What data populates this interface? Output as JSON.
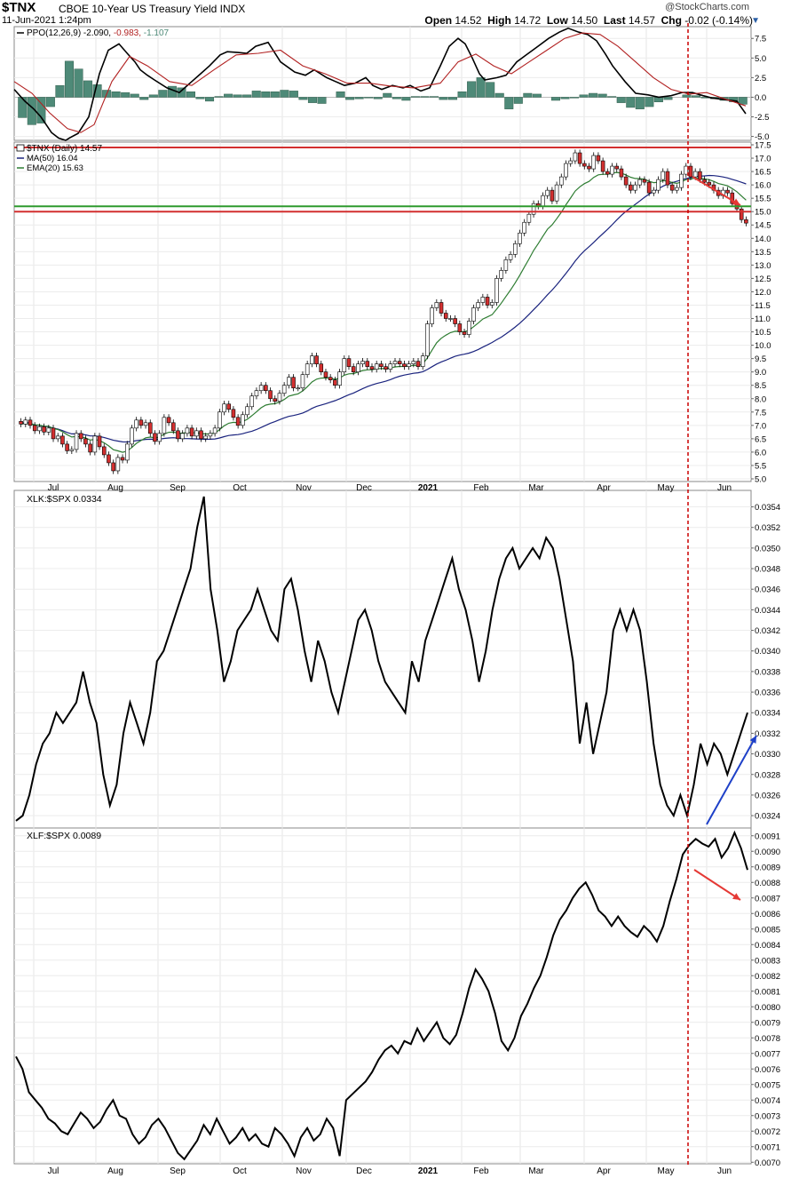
{
  "header": {
    "symbol": "$TNX",
    "description": "CBOE 10-Year US Treasury Yield INDX",
    "timestamp": "11-Jun-2021 1:24pm",
    "credit": "@StockCharts.com",
    "quote": {
      "open_label": "Open",
      "open": "14.52",
      "high_label": "High",
      "high": "14.72",
      "low_label": "Low",
      "low": "14.50",
      "last_label": "Last",
      "last": "14.57",
      "chg_label": "Chg",
      "chg": "-0.02 (-0.14%)"
    }
  },
  "colors": {
    "ppo_line": "#000000",
    "ppo_signal": "#b22222",
    "histogram": "#4e8a78",
    "ma50": "#1a237e",
    "ema20": "#2e7d32",
    "candle_up": "#ffffff",
    "candle_down": "#d32f2f",
    "resistance": "#d32f2f",
    "support": "#2e9a2e",
    "arrow_red": "#e53935",
    "arrow_blue": "#1e40c8",
    "vline": "#cc0000"
  },
  "x_axis": {
    "labels": [
      "Jul",
      "Aug",
      "Sep",
      "Oct",
      "Nov",
      "Dec",
      "2021",
      "Feb",
      "Mar",
      "Apr",
      "May",
      "Jun"
    ]
  },
  "chart_data": [
    {
      "panel": "ppo",
      "type": "line",
      "label_prefix": "PPO(12,26,9)",
      "values_text": [
        "-2.090",
        "-0.983",
        "-1.107"
      ],
      "ylim": [
        -5.5,
        9.0
      ],
      "ticks": [
        "7.5",
        "5.0",
        "2.5",
        "0.0",
        "-2.5",
        "-5.0"
      ],
      "series": [
        {
          "name": "PPO",
          "x": [
            0,
            12,
            22,
            30,
            36,
            42,
            50,
            58,
            62,
            72,
            84,
            96,
            106,
            118,
            128,
            136,
            142,
            150,
            158,
            172,
            186,
            190,
            200,
            210,
            220,
            232,
            240,
            252,
            262,
            272,
            286,
            300,
            316,
            328,
            338,
            352,
            362,
            372,
            384,
            396,
            404,
            414,
            426,
            438,
            446,
            458,
            468,
            480,
            490,
            500,
            508,
            516,
            524,
            530,
            544,
            554,
            566,
            578,
            590,
            602,
            614,
            624,
            636,
            646,
            656,
            666,
            674,
            688,
            700,
            714,
            726,
            740,
            752,
            764,
            776,
            786,
            800,
            814,
            824
          ],
          "values": [
            1.0,
            -0.5,
            -1.5,
            -2.5,
            -3.5,
            -4.5,
            -5.2,
            -5.5,
            -5.2,
            -4.6,
            -2.5,
            3.0,
            6.0,
            6.8,
            5.5,
            4.5,
            3.5,
            2.8,
            2.2,
            1.2,
            0.6,
            1.0,
            2.0,
            3.0,
            4.0,
            5.4,
            5.8,
            5.7,
            5.6,
            6.5,
            7.0,
            4.5,
            3.2,
            2.8,
            3.5,
            2.5,
            2.0,
            1.5,
            1.8,
            2.5,
            1.5,
            1.0,
            1.5,
            1.2,
            1.5,
            0.8,
            1.2,
            4.0,
            6.5,
            7.5,
            6.8,
            5.0,
            3.0,
            2.2,
            2.5,
            2.8,
            4.5,
            5.5,
            6.5,
            7.5,
            8.3,
            8.8,
            8.3,
            8.0,
            7.2,
            5.5,
            4.0,
            2.0,
            0.5,
            0.3,
            0.0,
            0.2,
            0.6,
            0.6,
            0.2,
            -0.1,
            -0.3,
            -0.5,
            -2.1
          ]
        },
        {
          "name": "Signal",
          "x": [
            0,
            20,
            40,
            60,
            75,
            90,
            110,
            130,
            150,
            175,
            200,
            225,
            250,
            275,
            300,
            325,
            350,
            375,
            400,
            425,
            450,
            480,
            500,
            520,
            540,
            560,
            580,
            600,
            620,
            640,
            660,
            680,
            700,
            720,
            740,
            760,
            780,
            800,
            824
          ],
          "values": [
            2.0,
            0.5,
            -2.0,
            -4.0,
            -4.5,
            -3.5,
            2.0,
            5.2,
            4.0,
            2.0,
            1.5,
            3.5,
            5.4,
            5.6,
            6.0,
            4.0,
            3.0,
            1.8,
            1.8,
            1.4,
            1.2,
            1.8,
            4.5,
            5.5,
            4.0,
            3.0,
            4.5,
            6.0,
            7.5,
            8.2,
            8.0,
            6.5,
            4.5,
            2.5,
            1.0,
            0.4,
            0.6,
            -0.2,
            -1.1
          ]
        }
      ],
      "histogram": [
        -2.6,
        -3.5,
        -3.3,
        -1.2,
        1.5,
        4.6,
        3.6,
        2.1,
        1.6,
        0.9,
        0.7,
        0.6,
        0.4,
        -0.3,
        0.3,
        0.9,
        1.4,
        1.2,
        0.7,
        -0.2,
        -0.5,
        0.1,
        0.4,
        0.3,
        0.3,
        0.8,
        0.7,
        0.7,
        0.9,
        0.8,
        -0.3,
        -0.7,
        -0.8,
        0.0,
        0.7,
        -0.3,
        -0.2,
        -0.1,
        -0.2,
        0.5,
        -0.2,
        -0.4,
        0.1,
        0.1,
        0.1,
        -0.3,
        -0.3,
        0.7,
        2.0,
        2.5,
        1.9,
        0.5,
        -1.5,
        -0.8,
        0.5,
        0.4,
        0.0,
        -0.4,
        -0.2,
        -0.1,
        0.3,
        0.5,
        0.4,
        0.1,
        -0.7,
        -1.3,
        -1.5,
        -1.2,
        -0.6,
        -0.3,
        0.0,
        0.3,
        0.2,
        -0.1,
        -0.2,
        -0.4,
        -0.6,
        -0.9
      ]
    },
    {
      "panel": "price",
      "type": "candlestick",
      "title": "$TNX (Daily) 14.57",
      "legend": [
        {
          "label": "MA(50)",
          "value": "16.04"
        },
        {
          "label": "EMA(20)",
          "value": "15.63"
        }
      ],
      "ylim": [
        4.9,
        17.6
      ],
      "ticks": [
        "17.5",
        "17.0",
        "16.5",
        "16.0",
        "15.5",
        "15.0",
        "14.5",
        "14.0",
        "13.5",
        "13.0",
        "12.5",
        "12.0",
        "11.5",
        "11.0",
        "10.5",
        "10.0",
        "9.5",
        "9.0",
        "8.5",
        "8.0",
        "7.5",
        "7.0",
        "6.5",
        "6.0",
        "5.5",
        "5.0"
      ],
      "horizontal_lines": [
        17.4,
        15.0,
        15.2
      ],
      "close": [
        7.05,
        7.2,
        7.0,
        6.8,
        6.95,
        6.75,
        6.9,
        6.5,
        6.6,
        6.3,
        6.05,
        6.1,
        6.7,
        6.5,
        6.3,
        6.0,
        6.6,
        6.2,
        5.9,
        5.6,
        5.3,
        5.8,
        5.7,
        6.3,
        6.9,
        7.2,
        7.0,
        7.1,
        6.7,
        6.4,
        6.7,
        7.3,
        7.1,
        6.8,
        6.5,
        6.7,
        6.9,
        6.6,
        6.8,
        6.5,
        6.6,
        6.7,
        6.9,
        7.5,
        7.8,
        7.6,
        7.3,
        7.0,
        7.4,
        7.7,
        8.1,
        8.3,
        8.5,
        8.3,
        8.0,
        7.9,
        8.2,
        8.5,
        8.8,
        8.4,
        8.4,
        8.9,
        9.3,
        9.6,
        9.3,
        9.0,
        8.8,
        8.7,
        8.5,
        9.0,
        9.5,
        9.2,
        9.0,
        9.3,
        9.4,
        9.2,
        9.1,
        9.3,
        9.2,
        9.1,
        9.3,
        9.4,
        9.3,
        9.2,
        9.3,
        9.4,
        9.2,
        9.6,
        10.8,
        11.4,
        11.6,
        11.2,
        11.0,
        11.0,
        10.8,
        10.5,
        10.4,
        10.9,
        11.4,
        11.6,
        11.8,
        11.5,
        11.6,
        12.5,
        12.8,
        13.2,
        13.4,
        13.8,
        14.2,
        14.6,
        14.9,
        15.3,
        15.2,
        15.6,
        15.8,
        15.4,
        16.0,
        16.3,
        16.8,
        16.9,
        17.2,
        16.8,
        16.7,
        16.6,
        17.1,
        16.9,
        16.5,
        16.4,
        16.7,
        16.6,
        16.3,
        16.0,
        15.8,
        16.0,
        16.2,
        16.1,
        15.7,
        15.8,
        16.2,
        16.5,
        16.0,
        15.8,
        15.9,
        16.4,
        16.7,
        16.3,
        16.5,
        16.2,
        16.1,
        16.0,
        15.8,
        15.6,
        15.8,
        15.7,
        15.3,
        15.1,
        14.7,
        14.57
      ]
    },
    {
      "panel": "xlk",
      "type": "line",
      "title": "XLK:$SPX 0.0334",
      "ylim": [
        0.03228,
        0.03556
      ],
      "ticks": [
        "0.0354",
        "0.0352",
        "0.0350",
        "0.0348",
        "0.0346",
        "0.0344",
        "0.0342",
        "0.0340",
        "0.0338",
        "0.0336",
        "0.0334",
        "0.0332",
        "0.0330",
        "0.0328",
        "0.0326",
        "0.0324"
      ],
      "values": [
        0.03235,
        0.0324,
        0.0326,
        0.0329,
        0.0331,
        0.0332,
        0.0334,
        0.0333,
        0.0334,
        0.0335,
        0.0338,
        0.0335,
        0.0333,
        0.0328,
        0.0325,
        0.0327,
        0.0332,
        0.0335,
        0.0333,
        0.0331,
        0.0334,
        0.0339,
        0.034,
        0.0342,
        0.0344,
        0.0346,
        0.0348,
        0.0352,
        0.0355,
        0.0346,
        0.0342,
        0.0337,
        0.0339,
        0.0342,
        0.0343,
        0.0344,
        0.0346,
        0.0344,
        0.0342,
        0.0341,
        0.0346,
        0.0347,
        0.0344,
        0.034,
        0.0337,
        0.0341,
        0.0339,
        0.0336,
        0.0334,
        0.0337,
        0.034,
        0.0343,
        0.0344,
        0.0342,
        0.0339,
        0.0337,
        0.0336,
        0.0335,
        0.0334,
        0.0339,
        0.0337,
        0.0341,
        0.0343,
        0.0345,
        0.0347,
        0.0349,
        0.0346,
        0.0344,
        0.0341,
        0.0337,
        0.034,
        0.0344,
        0.0347,
        0.0349,
        0.035,
        0.0348,
        0.0349,
        0.035,
        0.0349,
        0.0351,
        0.035,
        0.0347,
        0.0343,
        0.0339,
        0.0331,
        0.0335,
        0.033,
        0.0333,
        0.0336,
        0.0342,
        0.0344,
        0.0342,
        0.0344,
        0.0342,
        0.0337,
        0.0331,
        0.0327,
        0.0325,
        0.0324,
        0.0326,
        0.0324,
        0.0327,
        0.0331,
        0.0329,
        0.0331,
        0.033,
        0.0328,
        0.033,
        0.0332,
        0.0334
      ]
    },
    {
      "panel": "xlf",
      "type": "line",
      "title": "XLF:$SPX 0.0089",
      "ylim": [
        0.00699,
        0.00915
      ],
      "ticks": [
        "0.0091",
        "0.0090",
        "0.0089",
        "0.0088",
        "0.0087",
        "0.0086",
        "0.0085",
        "0.0084",
        "0.0083",
        "0.0082",
        "0.0081",
        "0.0080",
        "0.0079",
        "0.0078",
        "0.0077",
        "0.0076",
        "0.0075",
        "0.0074",
        "0.0073",
        "0.0072",
        "0.0071",
        "0.0070"
      ],
      "values": [
        0.00768,
        0.0076,
        0.00745,
        0.0074,
        0.00735,
        0.00728,
        0.00725,
        0.0072,
        0.00718,
        0.00725,
        0.00732,
        0.00728,
        0.00722,
        0.00726,
        0.00734,
        0.0074,
        0.0073,
        0.00728,
        0.00718,
        0.00712,
        0.00716,
        0.00724,
        0.00728,
        0.00722,
        0.00714,
        0.00706,
        0.00702,
        0.00708,
        0.00714,
        0.00724,
        0.00718,
        0.00728,
        0.0072,
        0.00712,
        0.00716,
        0.00722,
        0.00714,
        0.00718,
        0.00712,
        0.0071,
        0.00722,
        0.00718,
        0.00712,
        0.00704,
        0.00716,
        0.00722,
        0.00714,
        0.00718,
        0.00728,
        0.00722,
        0.00704,
        0.0074,
        0.00744,
        0.00748,
        0.00752,
        0.00758,
        0.00766,
        0.00772,
        0.00775,
        0.0077,
        0.00778,
        0.00776,
        0.00786,
        0.00778,
        0.00784,
        0.0079,
        0.0078,
        0.00776,
        0.00782,
        0.00796,
        0.00812,
        0.00824,
        0.00818,
        0.0081,
        0.00796,
        0.00778,
        0.00772,
        0.0078,
        0.00794,
        0.00802,
        0.00812,
        0.0082,
        0.00832,
        0.00846,
        0.00856,
        0.00862,
        0.0087,
        0.00876,
        0.0088,
        0.00872,
        0.00862,
        0.00858,
        0.00852,
        0.00858,
        0.00852,
        0.00848,
        0.00845,
        0.00852,
        0.00848,
        0.00842,
        0.00852,
        0.00868,
        0.00882,
        0.00898,
        0.00904,
        0.00908,
        0.00905,
        0.00903,
        0.00908,
        0.00896,
        0.00902,
        0.00912,
        0.00902,
        0.00888
      ]
    }
  ]
}
